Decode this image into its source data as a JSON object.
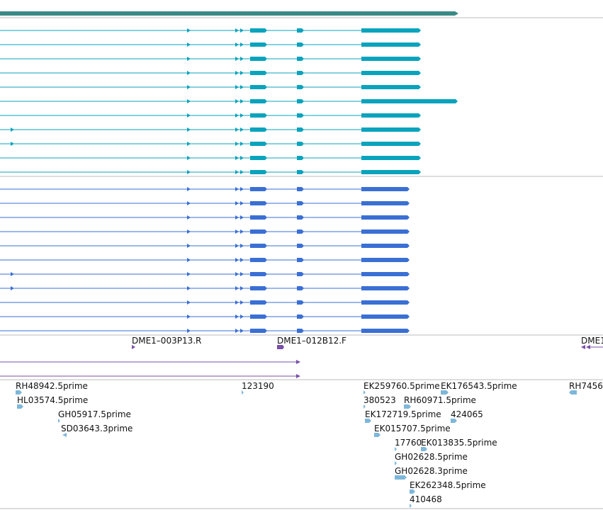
{
  "colors": {
    "gene": "#3a8a86",
    "transcript_a": "#0aa3bd",
    "transcript_b": "#3a6fd4",
    "primer": "#7950a9",
    "est": "#7db7d9",
    "divider": "#bbbbbb"
  },
  "tracks": {
    "gene": {
      "name": "gene-track"
    },
    "transcripts_a": {
      "count": 11,
      "long_row": 5,
      "extra_exon_rows": [
        7,
        8
      ]
    },
    "transcripts_b": {
      "count": 11,
      "extra_exon_rows": [
        6,
        7
      ]
    },
    "primers": {
      "labels": [
        "DME1–003P13.R",
        "DME1–012B12.F",
        "DME1"
      ]
    },
    "ests": {
      "labels": [
        "RH48942.5prime",
        "HL03574.5prime",
        "GH05917.5prime",
        "SD03643.3prime",
        "123190",
        "EK259760.5prime",
        "EK176543.5prime",
        "RH7456",
        "380523",
        "RH60971.5prime",
        "EK172719.5prime",
        "424065",
        "EK015707.5prime",
        "17760",
        "EK013835.5prime",
        "GH02628.5prime",
        "GH02628.3prime",
        "EK262348.5prime",
        "410468"
      ]
    }
  }
}
